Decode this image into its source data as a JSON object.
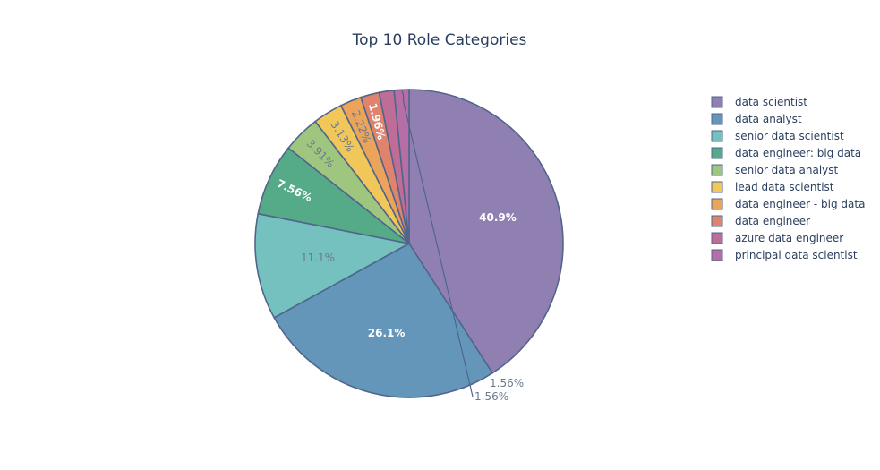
{
  "chart_data": {
    "type": "pie",
    "title": "Top 10 Role Categories",
    "legend_position": "right",
    "slices": [
      {
        "label": "data scientist",
        "value": 40.9,
        "text": "40.9%",
        "color": "#9080b2",
        "text_color": "#ffffff",
        "bold": true
      },
      {
        "label": "data analyst",
        "value": 26.1,
        "text": "26.1%",
        "color": "#6396b8",
        "text_color": "#ffffff",
        "bold": true
      },
      {
        "label": "senior data scientist",
        "value": 11.1,
        "text": "11.1%",
        "color": "#75c1bf",
        "text_color": "#6b7b8c",
        "bold": false
      },
      {
        "label": "data engineer: big data",
        "value": 7.56,
        "text": "7.56%",
        "color": "#55aa88",
        "text_color": "#ffffff",
        "bold": true
      },
      {
        "label": "senior data analyst",
        "value": 3.91,
        "text": "3.91%",
        "color": "#9fc67f",
        "text_color": "#6b7b8c",
        "bold": false
      },
      {
        "label": "lead data scientist",
        "value": 3.13,
        "text": "3.13%",
        "color": "#f1c759",
        "text_color": "#6b7b8c",
        "bold": false
      },
      {
        "label": "data engineer - big data",
        "value": 2.22,
        "text": "2.22%",
        "color": "#eba459",
        "text_color": "#6b7b8c",
        "bold": false
      },
      {
        "label": "data engineer",
        "value": 1.96,
        "text": "1.96%",
        "color": "#e0836d",
        "text_color": "#ffffff",
        "bold": true
      },
      {
        "label": "azure data engineer",
        "value": 1.56,
        "text": "1.56%",
        "color": "#bd6d96",
        "text_color": "#6b7b8c",
        "bold": false
      },
      {
        "label": "principal data scientist",
        "value": 1.56,
        "text": "1.56%",
        "color": "#b56ea6",
        "text_color": "#6b7b8c",
        "bold": false
      }
    ],
    "slice_border_color": "#51658c"
  }
}
